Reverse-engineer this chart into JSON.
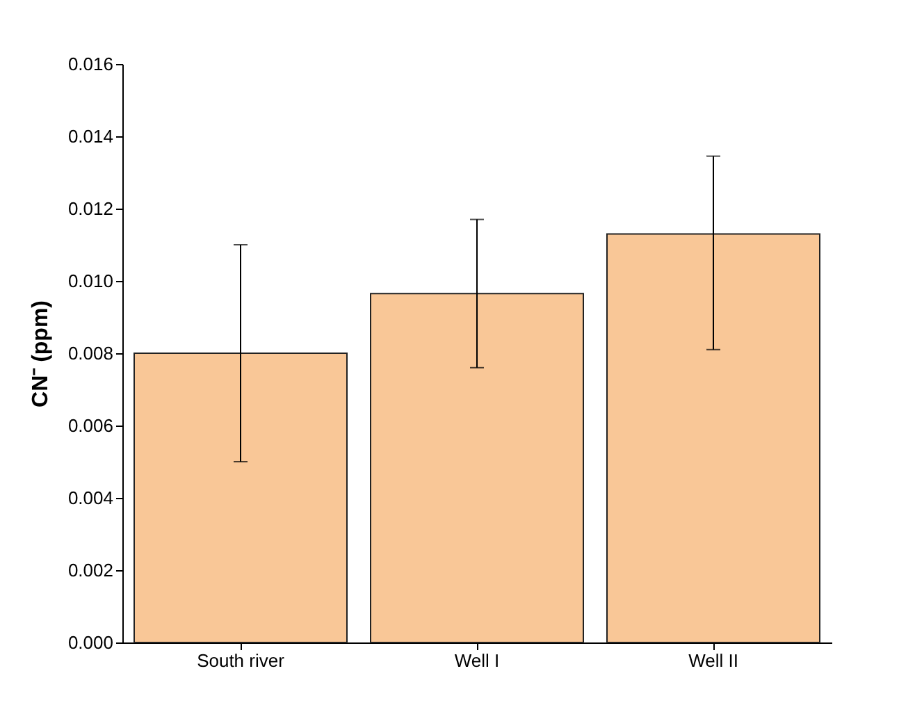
{
  "chart_data": {
    "type": "bar",
    "ylabel": "CN⁻ (ppm)",
    "categories": [
      "South river",
      "Well I",
      "Well II"
    ],
    "values": [
      0.008,
      0.00965,
      0.0113
    ],
    "errors": [
      [
        0.005,
        0.011
      ],
      [
        0.0076,
        0.0117
      ],
      [
        0.0081,
        0.01345
      ]
    ],
    "color": "#f9c797",
    "ylim": [
      0,
      0.016
    ],
    "yticks": [
      {
        "value": 0,
        "label": "0.000"
      },
      0.002,
      0.004,
      0.006,
      0.008,
      {
        "value": 0.01,
        "label": "0.010"
      },
      0.012,
      0.014,
      0.016
    ],
    "grid": false
  }
}
